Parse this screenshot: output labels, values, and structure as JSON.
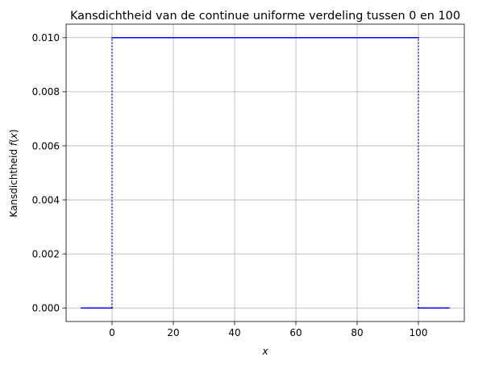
{
  "chart_data": {
    "type": "line",
    "title": "Kansdichtheid van de continue uniforme verdeling tussen 0 en 100",
    "xlabel": "x",
    "ylabel_prefix": "Kansdichtheid ",
    "ylabel_func": "f",
    "ylabel_open": "(",
    "ylabel_var": "x",
    "ylabel_close": ")",
    "xlim": [
      -15,
      115
    ],
    "ylim": [
      -0.0005,
      0.0105
    ],
    "xticks": [
      0,
      20,
      40,
      60,
      80,
      100
    ],
    "xtick_labels": [
      "0",
      "20",
      "40",
      "60",
      "80",
      "100"
    ],
    "yticks": [
      0.0,
      0.002,
      0.004,
      0.006,
      0.008,
      0.01
    ],
    "ytick_labels": [
      "0.000",
      "0.002",
      "0.004",
      "0.006",
      "0.008",
      "0.010"
    ],
    "grid": true,
    "line_color": "#0000ff",
    "grid_color": "#b0b0b0",
    "segments": [
      {
        "x": [
          -10,
          0
        ],
        "y": [
          0,
          0
        ]
      },
      {
        "x": [
          0,
          100
        ],
        "y": [
          0.01,
          0.01
        ]
      },
      {
        "x": [
          100,
          110
        ],
        "y": [
          0,
          0
        ]
      }
    ],
    "dotted_segments": [
      {
        "x": [
          0,
          0
        ],
        "y": [
          0,
          0.01
        ]
      },
      {
        "x": [
          100,
          100
        ],
        "y": [
          0,
          0.01
        ]
      }
    ]
  }
}
